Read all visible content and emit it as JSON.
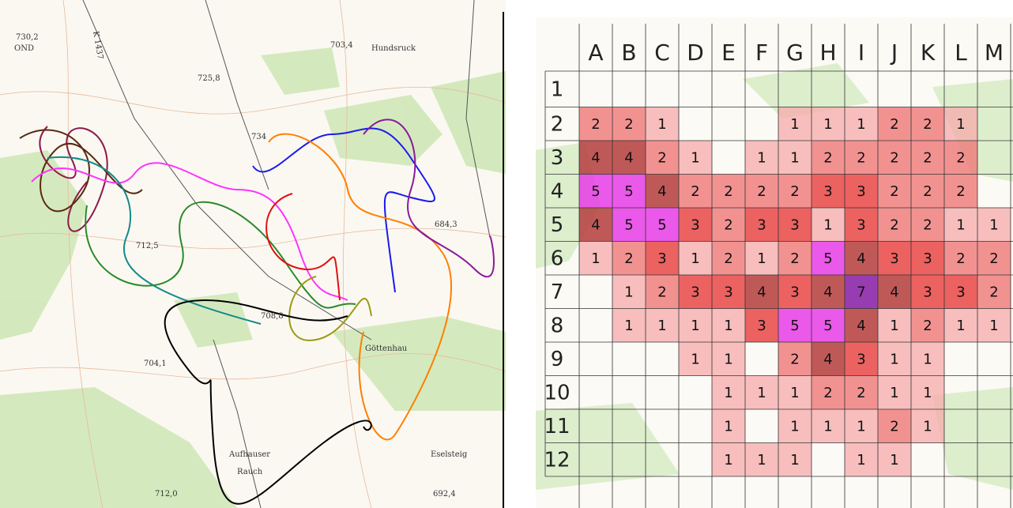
{
  "map": {
    "labels": [
      "730,2",
      "OND",
      "K 1437",
      "703,4",
      "Hundsruck",
      "725,8",
      "734",
      "712,5",
      "684,3",
      "708,8",
      "704,1",
      "Aufhauser",
      "Rauch",
      "Eselsteig",
      "692,4",
      "712,0",
      "Göttenhau"
    ]
  },
  "grid": {
    "columns": [
      "A",
      "B",
      "C",
      "D",
      "E",
      "F",
      "G",
      "H",
      "I",
      "J",
      "K",
      "L",
      "M"
    ],
    "rows": [
      {
        "label": "1",
        "cells": [
          null,
          null,
          null,
          null,
          null,
          null,
          null,
          null,
          null,
          null,
          null,
          null,
          null
        ]
      },
      {
        "label": "2",
        "cells": [
          2,
          2,
          1,
          null,
          null,
          null,
          1,
          1,
          1,
          2,
          2,
          1,
          null
        ]
      },
      {
        "label": "3",
        "cells": [
          4,
          4,
          2,
          1,
          null,
          1,
          1,
          2,
          2,
          2,
          2,
          2,
          null
        ]
      },
      {
        "label": "4",
        "cells": [
          5,
          5,
          4,
          2,
          2,
          2,
          2,
          3,
          3,
          2,
          2,
          2,
          null
        ]
      },
      {
        "label": "5",
        "cells": [
          4,
          5,
          5,
          3,
          2,
          3,
          3,
          1,
          3,
          2,
          2,
          1,
          1
        ]
      },
      {
        "label": "6",
        "cells": [
          1,
          2,
          3,
          1,
          2,
          1,
          2,
          5,
          4,
          3,
          3,
          2,
          2
        ]
      },
      {
        "label": "7",
        "cells": [
          null,
          1,
          2,
          3,
          3,
          4,
          3,
          4,
          7,
          4,
          3,
          3,
          2
        ]
      },
      {
        "label": "8",
        "cells": [
          null,
          1,
          1,
          1,
          1,
          3,
          5,
          5,
          4,
          1,
          2,
          1,
          1
        ]
      },
      {
        "label": "9",
        "cells": [
          null,
          null,
          null,
          1,
          1,
          null,
          2,
          4,
          3,
          1,
          1,
          null,
          null
        ]
      },
      {
        "label": "10",
        "cells": [
          null,
          null,
          null,
          null,
          1,
          1,
          1,
          2,
          2,
          1,
          1,
          null,
          null
        ]
      },
      {
        "label": "11",
        "cells": [
          null,
          null,
          null,
          null,
          1,
          null,
          1,
          1,
          1,
          2,
          1,
          null,
          null
        ]
      },
      {
        "label": "12",
        "cells": [
          null,
          null,
          null,
          null,
          1,
          1,
          1,
          null,
          1,
          1,
          null,
          null,
          null
        ]
      }
    ]
  }
}
